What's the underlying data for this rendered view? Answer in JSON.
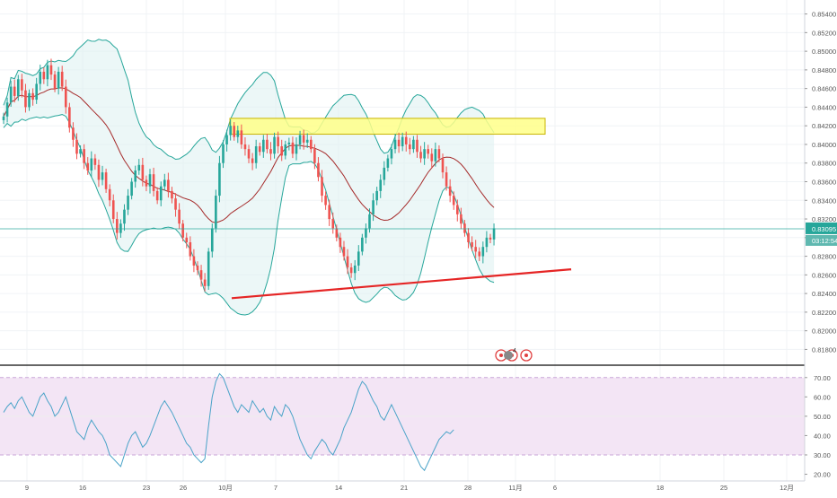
{
  "chart_data": [
    {
      "type": "candlestick",
      "series_description": "Price candles with Bollinger Bands (20) and annotated resistance zone / rising support line",
      "y_ticks": [
        "0.85400",
        "0.85200",
        "0.85000",
        "0.84800",
        "0.84600",
        "0.84400",
        "0.84200",
        "0.84000",
        "0.83800",
        "0.83600",
        "0.83400",
        "0.83200",
        "0.83000",
        "0.82800",
        "0.82600",
        "0.82400",
        "0.82200",
        "0.82000",
        "0.81800"
      ],
      "ylim": [
        0.8165,
        0.8555
      ],
      "x_ticks": [
        "9",
        "16",
        "23",
        "26",
        "10月",
        "7",
        "14",
        "21",
        "28",
        "11月",
        "6",
        "18",
        "25",
        "12月"
      ],
      "current_price_label": "0.83095",
      "countdown_label": "03:12:54",
      "current_price": 0.83095,
      "resistance_zone": {
        "y_low": 0.8411,
        "y_high": 0.8428
      },
      "support_line": {
        "start_price": 0.8235,
        "end_price": 0.8266
      },
      "colors": {
        "up": "#26a69a",
        "down": "#ef5350",
        "basis": "#a52a2a",
        "band": "#26a69a",
        "band_fill": "#e0f2f1",
        "support": "#e52525",
        "resistance_fill": "#ffff88",
        "price_line": "#26a69a"
      },
      "event_badge": "4",
      "close_path": [
        0.843,
        0.8445,
        0.8462,
        0.8452,
        0.847,
        0.8458,
        0.844,
        0.8455,
        0.8448,
        0.8465,
        0.8478,
        0.847,
        0.8485,
        0.8475,
        0.846,
        0.8478,
        0.8462,
        0.844,
        0.8418,
        0.8405,
        0.839,
        0.8395,
        0.838,
        0.8372,
        0.8385,
        0.8378,
        0.8362,
        0.837,
        0.8352,
        0.834,
        0.832,
        0.8305,
        0.8315,
        0.833,
        0.8345,
        0.836,
        0.8372,
        0.8378,
        0.8362,
        0.8355,
        0.8368,
        0.835,
        0.834,
        0.8355,
        0.8362,
        0.835,
        0.8342,
        0.833,
        0.8315,
        0.83,
        0.8295,
        0.828,
        0.827,
        0.8265,
        0.8255,
        0.8248,
        0.8285,
        0.831,
        0.8345,
        0.838,
        0.84,
        0.841,
        0.842,
        0.8408,
        0.8415,
        0.84,
        0.8395,
        0.8385,
        0.838,
        0.8398,
        0.8392,
        0.8405,
        0.8395,
        0.839,
        0.8408,
        0.8398,
        0.8388,
        0.84,
        0.8402,
        0.839,
        0.84,
        0.841,
        0.8402,
        0.8405,
        0.8395,
        0.838,
        0.8365,
        0.8345,
        0.8335,
        0.832,
        0.831,
        0.83,
        0.829,
        0.828,
        0.8268,
        0.8262,
        0.827,
        0.8285,
        0.83,
        0.831,
        0.8325,
        0.834,
        0.835,
        0.8362,
        0.8375,
        0.8385,
        0.8395,
        0.8405,
        0.8398,
        0.8408,
        0.84,
        0.8395,
        0.8405,
        0.8392,
        0.8385,
        0.8395,
        0.839,
        0.8382,
        0.8395,
        0.8385,
        0.837,
        0.8355,
        0.8345,
        0.8335,
        0.8325,
        0.8315,
        0.8305,
        0.8295,
        0.829,
        0.8285,
        0.828,
        0.829,
        0.83,
        0.8298,
        0.831
      ]
    },
    {
      "type": "line",
      "name": "RSI",
      "y_ticks": [
        "70.00",
        "60.00",
        "50.00",
        "40.00",
        "30.00",
        "20.00"
      ],
      "ylim": [
        17,
        75
      ],
      "overbought": 70,
      "oversold": 30,
      "colors": {
        "line": "#4aa3c8",
        "band_fill": "#f3e5f5",
        "band_border": "#c9a6d8"
      },
      "values": [
        52,
        55,
        57,
        54,
        58,
        60,
        56,
        52,
        50,
        55,
        60,
        62,
        58,
        55,
        50,
        52,
        56,
        60,
        54,
        48,
        42,
        40,
        38,
        44,
        48,
        45,
        42,
        40,
        36,
        30,
        28,
        26,
        24,
        30,
        36,
        40,
        42,
        38,
        34,
        36,
        40,
        45,
        50,
        55,
        58,
        55,
        52,
        48,
        44,
        40,
        36,
        34,
        30,
        28,
        26,
        28,
        45,
        60,
        68,
        72,
        70,
        65,
        60,
        55,
        52,
        56,
        54,
        52,
        58,
        55,
        52,
        54,
        50,
        48,
        55,
        52,
        50,
        56,
        54,
        50,
        44,
        38,
        34,
        30,
        28,
        32,
        35,
        38,
        36,
        32,
        30,
        34,
        38,
        44,
        48,
        52,
        58,
        64,
        68,
        66,
        62,
        58,
        55,
        50,
        48,
        52,
        56,
        52,
        48,
        44,
        40,
        36,
        32,
        28,
        24,
        22,
        26,
        30,
        34,
        38,
        40,
        42,
        41,
        43
      ]
    }
  ]
}
